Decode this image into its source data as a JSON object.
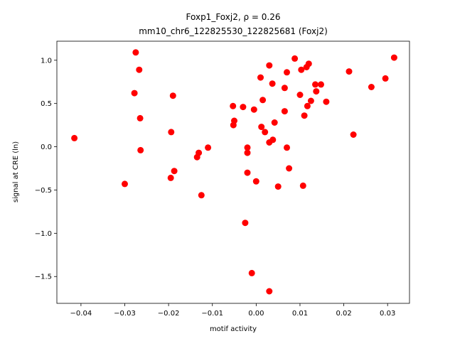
{
  "chart_data": {
    "type": "scatter",
    "title_line1": "Foxp1_Foxj2, ρ = 0.26",
    "title_line2": "mm10_chr6_122825530_122825681 (Foxj2)",
    "xlabel": "motif activity",
    "ylabel": "signal at CRE (ln)",
    "xlim": [
      -0.0455,
      0.035
    ],
    "ylim": [
      -1.81,
      1.22
    ],
    "xticks": [
      -0.04,
      -0.03,
      -0.02,
      -0.01,
      0.0,
      0.01,
      0.02,
      0.03
    ],
    "xtick_labels": [
      "−0.04",
      "−0.03",
      "−0.02",
      "−0.01",
      "0.00",
      "0.01",
      "0.02",
      "0.03"
    ],
    "yticks": [
      1.0,
      0.5,
      0.0,
      -0.5,
      -1.0,
      -1.5
    ],
    "ytick_labels": [
      "1.0",
      "0.5",
      "0.0",
      "−0.5",
      "−1.0",
      "−1.5"
    ],
    "grid": false,
    "marker_color": "#ff0000",
    "points": [
      [
        -0.0415,
        0.1
      ],
      [
        -0.03,
        -0.43
      ],
      [
        -0.0278,
        0.62
      ],
      [
        -0.0275,
        1.09
      ],
      [
        -0.0267,
        0.89
      ],
      [
        -0.0265,
        0.33
      ],
      [
        -0.0264,
        -0.04
      ],
      [
        -0.0195,
        -0.36
      ],
      [
        -0.0194,
        0.17
      ],
      [
        -0.019,
        0.59
      ],
      [
        -0.0187,
        -0.28
      ],
      [
        -0.0135,
        -0.12
      ],
      [
        -0.0131,
        -0.07
      ],
      [
        -0.0125,
        -0.56
      ],
      [
        -0.011,
        -0.01
      ],
      [
        -0.0053,
        0.47
      ],
      [
        -0.0052,
        0.25
      ],
      [
        -0.005,
        0.3
      ],
      [
        -0.003,
        0.46
      ],
      [
        -0.0025,
        -0.88
      ],
      [
        -0.002,
        -0.01
      ],
      [
        -0.002,
        -0.07
      ],
      [
        -0.002,
        -0.3
      ],
      [
        -0.001,
        -1.46
      ],
      [
        -0.0005,
        0.43
      ],
      [
        0.0,
        -0.4
      ],
      [
        0.001,
        0.8
      ],
      [
        0.0012,
        0.23
      ],
      [
        0.0015,
        0.54
      ],
      [
        0.002,
        0.17
      ],
      [
        0.003,
        0.94
      ],
      [
        0.003,
        0.05
      ],
      [
        0.003,
        -1.67
      ],
      [
        0.0037,
        0.73
      ],
      [
        0.0038,
        0.08
      ],
      [
        0.0042,
        0.28
      ],
      [
        0.005,
        -0.46
      ],
      [
        0.0065,
        0.68
      ],
      [
        0.0065,
        0.41
      ],
      [
        0.007,
        0.86
      ],
      [
        0.007,
        -0.01
      ],
      [
        0.0075,
        -0.25
      ],
      [
        0.0088,
        1.02
      ],
      [
        0.01,
        0.6
      ],
      [
        0.0103,
        0.89
      ],
      [
        0.0107,
        -0.45
      ],
      [
        0.011,
        0.36
      ],
      [
        0.0115,
        0.92
      ],
      [
        0.0117,
        0.47
      ],
      [
        0.012,
        0.96
      ],
      [
        0.0125,
        0.53
      ],
      [
        0.0135,
        0.72
      ],
      [
        0.0137,
        0.64
      ],
      [
        0.0148,
        0.72
      ],
      [
        0.016,
        0.52
      ],
      [
        0.0212,
        0.87
      ],
      [
        0.0222,
        0.14
      ],
      [
        0.0263,
        0.69
      ],
      [
        0.0295,
        0.79
      ],
      [
        0.0315,
        1.03
      ]
    ]
  }
}
